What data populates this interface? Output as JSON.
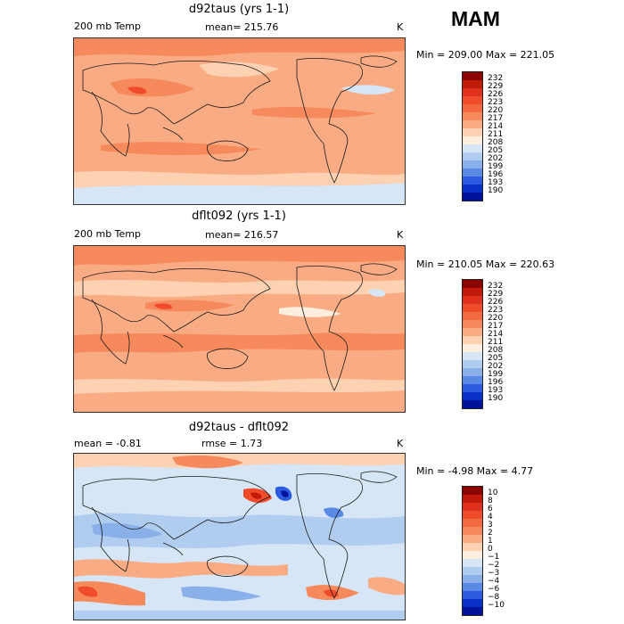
{
  "season": "MAM",
  "panels": [
    {
      "title": "d92taus (yrs 1-1)",
      "left_label": "200 mb Temp",
      "center_label": "mean= 215.76",
      "units": "K",
      "minmax": "Min = 209.00 Max = 221.05"
    },
    {
      "title": "dflt092 (yrs 1-1)",
      "left_label": "200 mb Temp",
      "center_label": "mean= 216.57",
      "units": "K",
      "minmax": "Min = 210.05 Max = 220.63"
    },
    {
      "title": "d92taus - dflt092",
      "left_label": "mean =  -0.81",
      "center_label": "rmse =   1.73",
      "units": "K",
      "minmax": "Min =  -4.98 Max =   4.77"
    }
  ],
  "legend_abs": {
    "labels": [
      "232",
      "229",
      "226",
      "223",
      "220",
      "217",
      "214",
      "211",
      "208",
      "205",
      "202",
      "199",
      "196",
      "193",
      "190"
    ],
    "colors": [
      "#8b0000",
      "#c01a0a",
      "#e0301e",
      "#f04c2c",
      "#f46a40",
      "#f68a5c",
      "#f9ac84",
      "#fcd2b2",
      "#fdeedd",
      "#d7e6f6",
      "#b0cdf0",
      "#8ab0ea",
      "#5a8ae6",
      "#2c5ae0",
      "#0a30cc",
      "#00129a"
    ]
  },
  "legend_diff": {
    "labels": [
      "10",
      "8",
      "6",
      "4",
      "3",
      "2",
      "1",
      "0",
      "−1",
      "−2",
      "−3",
      "−4",
      "−6",
      "−8",
      "−10"
    ],
    "colors": [
      "#8b0000",
      "#c01a0a",
      "#e0301e",
      "#f04c2c",
      "#f46a40",
      "#f68a5c",
      "#f9ac84",
      "#fcd2b2",
      "#fdeedd",
      "#d7e6f6",
      "#b0cdf0",
      "#8ab0ea",
      "#5a8ae6",
      "#2c5ae0",
      "#0a30cc",
      "#00129a"
    ]
  }
}
